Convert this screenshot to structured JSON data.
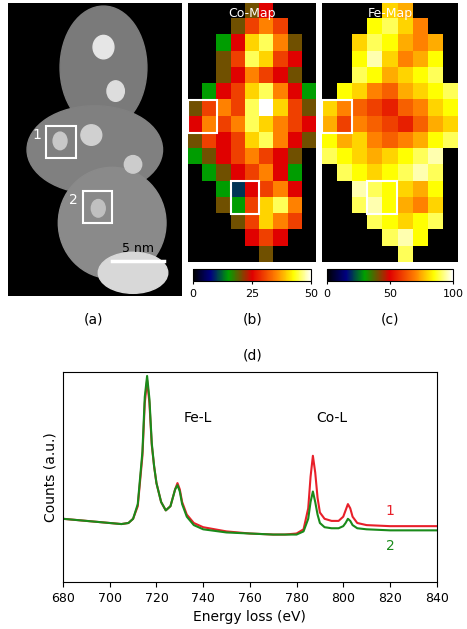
{
  "chart_data": [
    {
      "type": "image",
      "label": "(a)",
      "box_labels": [
        "1",
        "2"
      ],
      "scale_bar": "5 nm"
    },
    {
      "type": "heatmap",
      "label": "(b)",
      "title": "Co-Map",
      "tick_labels": false,
      "cells": [
        [
          0,
          0,
          0,
          0,
          20,
          25,
          0,
          0,
          0
        ],
        [
          0,
          0,
          0,
          20,
          30,
          35,
          30,
          0,
          0
        ],
        [
          0,
          0,
          15,
          25,
          40,
          45,
          35,
          20,
          0
        ],
        [
          0,
          0,
          20,
          30,
          45,
          40,
          30,
          25,
          0
        ],
        [
          0,
          0,
          20,
          25,
          35,
          30,
          25,
          20,
          0
        ],
        [
          0,
          15,
          25,
          30,
          40,
          45,
          35,
          25,
          15
        ],
        [
          20,
          30,
          35,
          30,
          45,
          50,
          40,
          30,
          20
        ],
        [
          25,
          35,
          30,
          35,
          45,
          40,
          35,
          30,
          25
        ],
        [
          20,
          30,
          25,
          30,
          40,
          45,
          35,
          25,
          20
        ],
        [
          15,
          20,
          25,
          30,
          35,
          30,
          25,
          20,
          0
        ],
        [
          0,
          15,
          20,
          25,
          30,
          35,
          25,
          15,
          0
        ],
        [
          0,
          0,
          15,
          10,
          25,
          30,
          35,
          25,
          0
        ],
        [
          0,
          0,
          20,
          15,
          30,
          40,
          45,
          35,
          0
        ],
        [
          0,
          0,
          0,
          20,
          30,
          40,
          35,
          30,
          0
        ],
        [
          0,
          0,
          0,
          0,
          25,
          30,
          25,
          0,
          0
        ],
        [
          0,
          0,
          0,
          0,
          0,
          20,
          0,
          0,
          0
        ]
      ],
      "colorbar": {
        "range": [
          0,
          50
        ],
        "ticks": [
          0,
          25,
          50
        ]
      }
    },
    {
      "type": "heatmap",
      "label": "(c)",
      "title": "Fe-Map",
      "tick_labels": false,
      "cells": [
        [
          0,
          0,
          0,
          0,
          80,
          75,
          0,
          0,
          0
        ],
        [
          0,
          0,
          0,
          85,
          90,
          80,
          70,
          0,
          0
        ],
        [
          0,
          0,
          80,
          90,
          85,
          75,
          70,
          75,
          0
        ],
        [
          0,
          0,
          85,
          95,
          80,
          70,
          75,
          85,
          0
        ],
        [
          0,
          0,
          90,
          85,
          75,
          80,
          85,
          90,
          0
        ],
        [
          0,
          85,
          80,
          70,
          65,
          75,
          80,
          85,
          90
        ],
        [
          80,
          70,
          65,
          60,
          55,
          65,
          70,
          80,
          85
        ],
        [
          75,
          60,
          70,
          65,
          60,
          55,
          65,
          75,
          80
        ],
        [
          85,
          75,
          80,
          70,
          65,
          70,
          75,
          85,
          90
        ],
        [
          90,
          85,
          80,
          75,
          80,
          85,
          90,
          95,
          0
        ],
        [
          0,
          90,
          85,
          80,
          85,
          90,
          95,
          90,
          0
        ],
        [
          0,
          0,
          95,
          90,
          85,
          80,
          75,
          85,
          0
        ],
        [
          0,
          0,
          90,
          95,
          85,
          75,
          70,
          80,
          0
        ],
        [
          0,
          0,
          0,
          90,
          85,
          80,
          85,
          90,
          0
        ],
        [
          0,
          0,
          0,
          0,
          90,
          95,
          85,
          0,
          0
        ],
        [
          0,
          0,
          0,
          0,
          0,
          90,
          0,
          0,
          0
        ]
      ],
      "colorbar": {
        "range": [
          0,
          100
        ],
        "ticks": [
          0,
          50,
          100
        ]
      }
    },
    {
      "type": "line",
      "label": "(d)",
      "x_label": "Energy loss (eV)",
      "y_label": "Counts (a.u.)",
      "annotations": [
        "Fe-L",
        "Co-L"
      ],
      "tick_labels": "x",
      "x": [
        680,
        690,
        700,
        705,
        708,
        710,
        712,
        714,
        715,
        716,
        717,
        718,
        719,
        720,
        722,
        724,
        726,
        727,
        728,
        729,
        730,
        731,
        733,
        736,
        740,
        750,
        760,
        770,
        775,
        780,
        783,
        785,
        786,
        787,
        788,
        789,
        790,
        792,
        795,
        798,
        800,
        801,
        802,
        803,
        804,
        806,
        810,
        820,
        830,
        840
      ],
      "series": [
        {
          "name": "1",
          "color": "#e8202a",
          "values": [
            30,
            29,
            28,
            27.5,
            28,
            30,
            36,
            60,
            85,
            96,
            85,
            65,
            55,
            47,
            38,
            34,
            36,
            40,
            44,
            47,
            44,
            38,
            32,
            28,
            26,
            24,
            23,
            22.5,
            22.5,
            23,
            25,
            35,
            50,
            60,
            52,
            40,
            33,
            30,
            29,
            29,
            31,
            34,
            37,
            35,
            31,
            28,
            27,
            26.5,
            26.5,
            26.5
          ]
        },
        {
          "name": "2",
          "color": "#1a8a1a",
          "values": [
            30,
            29,
            28,
            27.5,
            28,
            30,
            37,
            62,
            88,
            98,
            87,
            66,
            55,
            47,
            38,
            34,
            36,
            40,
            44,
            46,
            43,
            37,
            31,
            27,
            25,
            23.5,
            23,
            22.5,
            22.5,
            22.5,
            24,
            30,
            38,
            43,
            38,
            32,
            28,
            26,
            25.5,
            25.5,
            26.5,
            28,
            30,
            29,
            27,
            25.5,
            25,
            24.5,
            24.5,
            24.5
          ]
        }
      ],
      "xlim": [
        680,
        840
      ],
      "xticks": [
        680,
        700,
        720,
        740,
        760,
        780,
        800,
        820,
        840
      ],
      "ylim": [
        0,
        100
      ]
    }
  ]
}
